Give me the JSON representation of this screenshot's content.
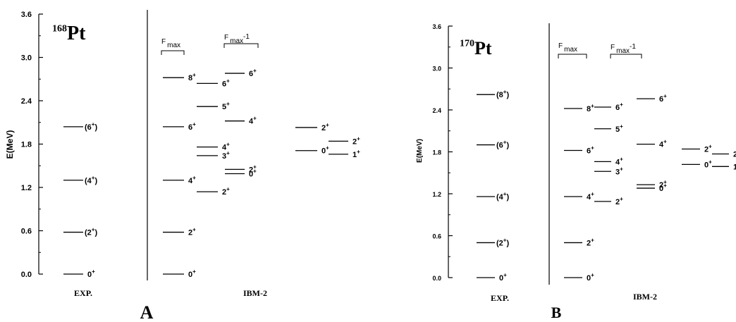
{
  "panels": [
    {
      "id": "A",
      "panel_letter": "A",
      "nucleus_mass": "168",
      "nucleus_symbol": "Pt",
      "ylabel": "E(MeV)",
      "y_ticks": [
        "0.0",
        "0.6",
        "1.2",
        "1.8",
        "2.4",
        "3.0",
        "3.6"
      ],
      "ylim": [
        0,
        3.6
      ],
      "exp_label": "EXP.",
      "theory_label": "IBM-2",
      "fmax_label": "F",
      "fmax_sub": "max",
      "fmax1_label": "F",
      "fmax1_sub": "max",
      "fmax1_suffix": "-1",
      "columns": [
        {
          "group": "exp",
          "levels": [
            {
              "E": 0.0,
              "j": "0",
              "p": "+",
              "paren": false
            },
            {
              "E": 0.58,
              "j": "2",
              "p": "+",
              "paren": true
            },
            {
              "E": 1.3,
              "j": "4",
              "p": "+",
              "paren": true
            },
            {
              "E": 2.04,
              "j": "6",
              "p": "+",
              "paren": true
            }
          ]
        },
        {
          "group": "fmax",
          "levels": [
            {
              "E": 0.0,
              "j": "0",
              "p": "+"
            },
            {
              "E": 0.58,
              "j": "2",
              "p": "+"
            },
            {
              "E": 1.3,
              "j": "4",
              "p": "+"
            },
            {
              "E": 2.04,
              "j": "6",
              "p": "+"
            },
            {
              "E": 2.72,
              "j": "8",
              "p": "+"
            }
          ]
        },
        {
          "group": "fmax",
          "levels": [
            {
              "E": 1.14,
              "j": "2",
              "p": "+"
            },
            {
              "E": 1.64,
              "j": "3",
              "p": "+"
            },
            {
              "E": 1.76,
              "j": "4",
              "p": "+"
            },
            {
              "E": 2.32,
              "j": "5",
              "p": "+"
            },
            {
              "E": 2.64,
              "j": "6",
              "p": "+"
            }
          ]
        },
        {
          "group": "fmax1",
          "levels": [
            {
              "E": 1.39,
              "j": "0",
              "p": "+"
            },
            {
              "E": 1.45,
              "j": "2",
              "p": "+"
            },
            {
              "E": 2.12,
              "j": "4",
              "p": "+"
            },
            {
              "E": 2.78,
              "j": "6",
              "p": "+"
            }
          ]
        },
        {
          "group": "extra",
          "levels": [
            {
              "E": 1.71,
              "j": "0",
              "p": "+"
            },
            {
              "E": 2.03,
              "j": "2",
              "p": "+"
            }
          ]
        },
        {
          "group": "extra",
          "levels": [
            {
              "E": 1.66,
              "j": "1",
              "p": "+"
            },
            {
              "E": 1.84,
              "j": "2",
              "p": "+"
            }
          ]
        }
      ]
    },
    {
      "id": "B",
      "panel_letter": "B",
      "nucleus_mass": "170",
      "nucleus_symbol": "Pt",
      "ylabel": "E(MeV)",
      "y_ticks": [
        "0.0",
        "0.6",
        "1.2",
        "1.8",
        "2.4",
        "3.0",
        "3.6"
      ],
      "ylim": [
        0,
        3.6
      ],
      "exp_label": "EXP.",
      "theory_label": "IBM-2",
      "fmax_label": "F",
      "fmax_sub": "max",
      "fmax1_label": "F",
      "fmax1_sub": "max",
      "fmax1_suffix": "-1",
      "columns": [
        {
          "group": "exp",
          "levels": [
            {
              "E": 0.0,
              "j": "0",
              "p": "+",
              "paren": false
            },
            {
              "E": 0.5,
              "j": "2",
              "p": "+",
              "paren": true
            },
            {
              "E": 1.16,
              "j": "4",
              "p": "+",
              "paren": true
            },
            {
              "E": 1.9,
              "j": "6",
              "p": "+",
              "paren": true
            },
            {
              "E": 2.62,
              "j": "8",
              "p": "+",
              "paren": true
            }
          ]
        },
        {
          "group": "fmax",
          "levels": [
            {
              "E": 0.0,
              "j": "0",
              "p": "+"
            },
            {
              "E": 0.5,
              "j": "2",
              "p": "+"
            },
            {
              "E": 1.16,
              "j": "4",
              "p": "+"
            },
            {
              "E": 1.82,
              "j": "6",
              "p": "+"
            },
            {
              "E": 2.42,
              "j": "8",
              "p": "+"
            }
          ]
        },
        {
          "group": "fmax",
          "levels": [
            {
              "E": 1.09,
              "j": "2",
              "p": "+"
            },
            {
              "E": 1.52,
              "j": "3",
              "p": "+"
            },
            {
              "E": 1.66,
              "j": "4",
              "p": "+"
            },
            {
              "E": 2.13,
              "j": "5",
              "p": "+"
            },
            {
              "E": 2.44,
              "j": "6",
              "p": "+"
            }
          ]
        },
        {
          "group": "fmax1",
          "levels": [
            {
              "E": 1.28,
              "j": "0",
              "p": "+"
            },
            {
              "E": 1.33,
              "j": "2",
              "p": "+"
            },
            {
              "E": 1.91,
              "j": "4",
              "p": "+"
            },
            {
              "E": 2.56,
              "j": "6",
              "p": "+"
            }
          ]
        },
        {
          "group": "extra",
          "levels": [
            {
              "E": 1.62,
              "j": "0",
              "p": "+"
            },
            {
              "E": 1.84,
              "j": "2",
              "p": "+"
            }
          ]
        },
        {
          "group": "extra",
          "levels": [
            {
              "E": 1.59,
              "j": "1",
              "p": "+"
            },
            {
              "E": 1.77,
              "j": "2",
              "p": "+"
            }
          ]
        }
      ]
    }
  ]
}
